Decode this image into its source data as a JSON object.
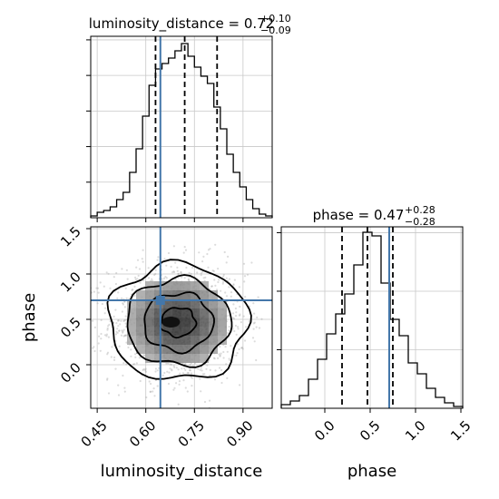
{
  "chart_data": [
    {
      "type": "histogram",
      "title": {
        "param": "luminosity_distance",
        "median": "0.72",
        "plus": "+0.10",
        "minus": "−0.09"
      },
      "x": {
        "range": [
          0.43,
          0.99
        ],
        "ticks": [
          0.45,
          0.6,
          0.75,
          0.9
        ],
        "tick_labels": [
          "0.45",
          "0.60",
          "0.75",
          "0.90"
        ],
        "label": "luminosity_distance"
      },
      "y": {
        "range": [
          0,
          1.0
        ],
        "tick_count": 5
      },
      "bin_edges": [
        0.43,
        0.45,
        0.47,
        0.49,
        0.51,
        0.53,
        0.55,
        0.57,
        0.59,
        0.61,
        0.63,
        0.65,
        0.67,
        0.69,
        0.71,
        0.73,
        0.75,
        0.77,
        0.79,
        0.81,
        0.83,
        0.85,
        0.87,
        0.89,
        0.91,
        0.93,
        0.95,
        0.97,
        0.99
      ],
      "counts": [
        0.01,
        0.03,
        0.04,
        0.06,
        0.1,
        0.14,
        0.25,
        0.38,
        0.56,
        0.73,
        0.82,
        0.85,
        0.88,
        0.92,
        0.96,
        0.89,
        0.83,
        0.78,
        0.74,
        0.61,
        0.49,
        0.35,
        0.25,
        0.17,
        0.1,
        0.05,
        0.02,
        0.01
      ],
      "quantiles": [
        0.63,
        0.72,
        0.82
      ],
      "truth": 0.645
    },
    {
      "type": "histogram",
      "title": {
        "param": "phase",
        "median": "0.47",
        "plus": "+0.28",
        "minus": "−0.28"
      },
      "x": {
        "range": [
          -0.48,
          1.52
        ],
        "ticks": [
          0.0,
          0.5,
          1.0,
          1.5
        ],
        "tick_labels": [
          "0.0",
          "0.5",
          "1.0",
          "1.5"
        ],
        "label": "phase"
      },
      "y": {
        "range": [
          0,
          1.0
        ],
        "tick_count": 3
      },
      "bin_edges": [
        -0.48,
        -0.38,
        -0.28,
        -0.18,
        -0.08,
        0.02,
        0.12,
        0.22,
        0.32,
        0.42,
        0.52,
        0.62,
        0.72,
        0.82,
        0.92,
        1.02,
        1.12,
        1.22,
        1.32,
        1.42,
        1.52
      ],
      "counts": [
        0.02,
        0.04,
        0.07,
        0.16,
        0.27,
        0.41,
        0.52,
        0.63,
        0.79,
        0.97,
        0.95,
        0.69,
        0.49,
        0.4,
        0.25,
        0.19,
        0.11,
        0.06,
        0.03,
        0.01
      ],
      "quantiles": [
        0.19,
        0.47,
        0.75
      ],
      "truth": 0.71
    },
    {
      "type": "scatter-contour",
      "x": {
        "range": [
          0.43,
          0.99
        ],
        "ticks": [
          0.45,
          0.6,
          0.75,
          0.9
        ],
        "tick_labels": [
          "0.45",
          "0.60",
          "0.75",
          "0.90"
        ],
        "label": "luminosity_distance"
      },
      "y": {
        "range": [
          -0.48,
          1.52
        ],
        "ticks": [
          0.0,
          0.5,
          1.0,
          1.5
        ],
        "tick_labels": [
          "0.0",
          "0.5",
          "1.0",
          "1.5"
        ],
        "label": "phase"
      },
      "center": [
        0.7,
        0.47
      ],
      "spread": [
        0.105,
        0.33
      ],
      "contour_levels": [
        0.5,
        1.0,
        1.5,
        2.0
      ],
      "truth": [
        0.645,
        0.71
      ],
      "grid": true
    }
  ],
  "colors": {
    "truth": "#4477aa",
    "hist": "#000000",
    "grid": "#c8c8c8",
    "points": "#9a9a9a"
  }
}
